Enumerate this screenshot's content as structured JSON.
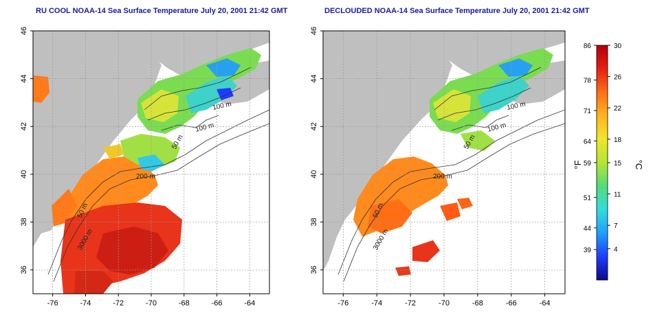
{
  "maps": [
    {
      "title": "RU COOL NOAA-14 Sea Surface Temperature July 20, 2001 21:42 GMT",
      "contour_labels": [
        "100 m",
        "100 m",
        "50 m",
        "200 m",
        "50 m",
        "3000 m"
      ]
    },
    {
      "title": "DECLOUDED NOAA-14 Sea Surface Temperature July 20, 2001 21:42 GMT",
      "contour_labels": [
        "100 m",
        "100 m",
        "50 m",
        "200 m",
        "50 m",
        "3000 m"
      ]
    }
  ],
  "axes": {
    "x_ticks": [
      "-76",
      "-74",
      "-72",
      "-70",
      "-68",
      "-66",
      "-64"
    ],
    "y_ticks": [
      "44",
      "42",
      "40",
      "38",
      "36"
    ],
    "y_top_label": "46",
    "x_range": [
      -77.2,
      -62.8
    ],
    "y_range": [
      35,
      46
    ]
  },
  "colorbar": {
    "fahrenheit_ticks": [
      "86",
      "78",
      "71",
      "64",
      "59",
      "51",
      "44",
      "39"
    ],
    "celsius_ticks": [
      "30",
      "26",
      "22",
      "18",
      "15",
      "11",
      "7",
      "4"
    ],
    "left_unit": "°F",
    "right_unit": "°C",
    "stops": [
      "#0a0a8c",
      "#1e3cff",
      "#1ea0ff",
      "#32dcdc",
      "#50dc78",
      "#b4e632",
      "#f0e628",
      "#ffb41e",
      "#ff6e14",
      "#e61e14",
      "#b4000a"
    ]
  },
  "colors": {
    "land": "#bfbfbf",
    "cloud": "#ffffff",
    "grid": "#9a9a9a"
  }
}
